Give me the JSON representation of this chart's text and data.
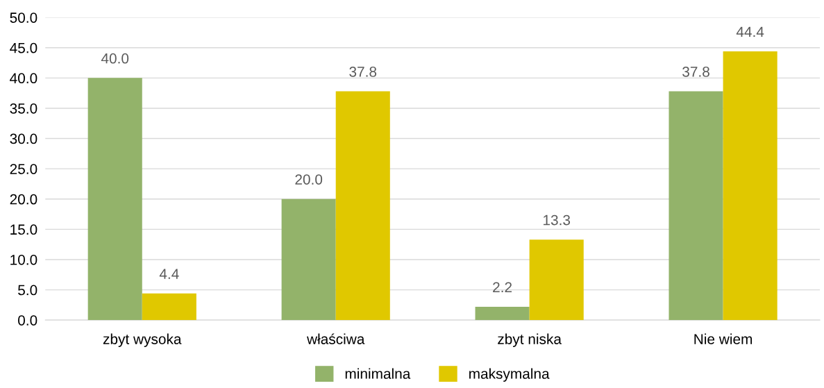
{
  "chart_data": {
    "type": "bar",
    "categories": [
      "zbyt wysoka",
      "właściwa",
      "zbyt niska",
      "Nie wiem"
    ],
    "series": [
      {
        "name": "minimalna",
        "color": "#93b36a",
        "values": [
          40.0,
          20.0,
          2.2,
          37.8
        ],
        "value_labels": [
          "40.0",
          "20.0",
          "2.2",
          "37.8"
        ]
      },
      {
        "name": "maksymalna",
        "color": "#e0c800",
        "values": [
          4.4,
          37.8,
          13.3,
          44.4
        ],
        "value_labels": [
          "4.4",
          "37.8",
          "13.3",
          "44.4"
        ]
      }
    ],
    "ylim": [
      0,
      50
    ],
    "yticks": [
      {
        "value": 0,
        "label": "0.0"
      },
      {
        "value": 5,
        "label": "5.0"
      },
      {
        "value": 10,
        "label": "10.0"
      },
      {
        "value": 15,
        "label": "15.0"
      },
      {
        "value": 20,
        "label": "20.0"
      },
      {
        "value": 25,
        "label": "25.0"
      },
      {
        "value": 30,
        "label": "30.0"
      },
      {
        "value": 35,
        "label": "35.0"
      },
      {
        "value": 40,
        "label": "40.0"
      },
      {
        "value": 45,
        "label": "45.0"
      },
      {
        "value": 50,
        "label": "50.0"
      }
    ],
    "grid": "y",
    "legend": "bottom"
  }
}
